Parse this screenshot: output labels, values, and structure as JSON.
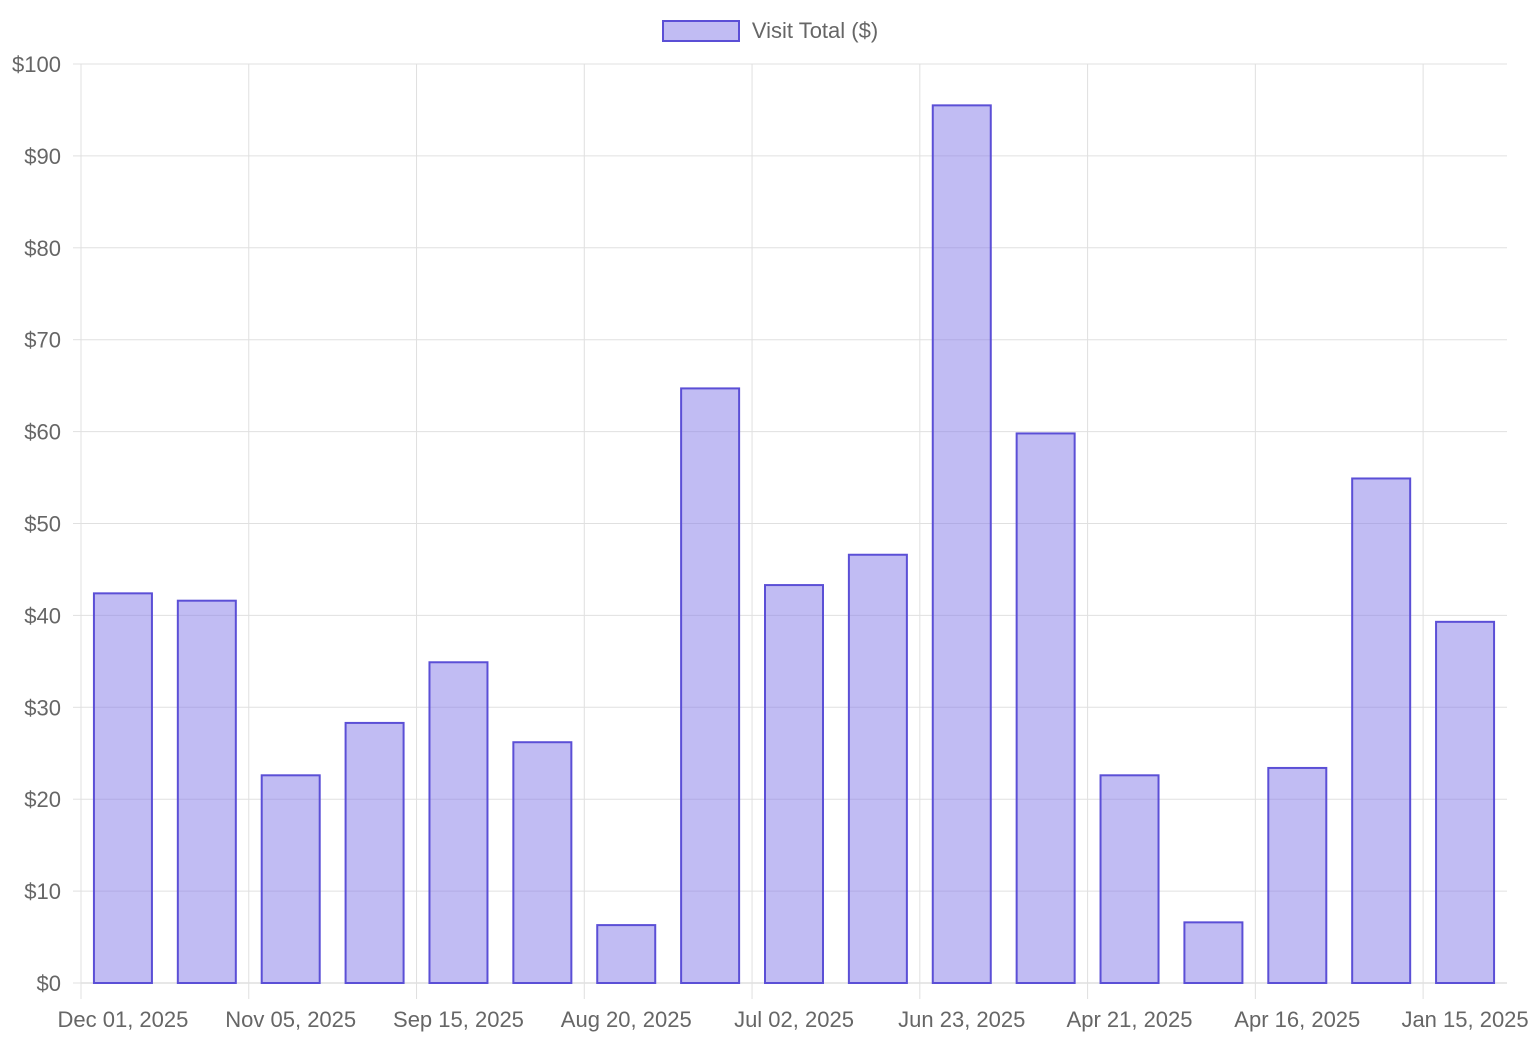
{
  "chart_data": {
    "type": "bar",
    "title": "",
    "xlabel": "",
    "ylabel": "",
    "ylim": [
      0,
      100
    ],
    "y_ticks": [
      "$0",
      "$10",
      "$20",
      "$30",
      "$40",
      "$50",
      "$60",
      "$70",
      "$80",
      "$90",
      "$100"
    ],
    "y_tick_values": [
      0,
      10,
      20,
      30,
      40,
      50,
      60,
      70,
      80,
      90,
      100
    ],
    "categories": [
      "Dec 01, 2025",
      "",
      "Nov 05, 2025",
      "",
      "Sep 15, 2025",
      "",
      "Aug 20, 2025",
      "",
      "Jul 02, 2025",
      "",
      "Jun 23, 2025",
      "",
      "Apr 21, 2025",
      "",
      "Apr 16, 2025",
      "",
      "Jan 15, 2025"
    ],
    "x_tick_labels": [
      "Dec 01, 2025",
      "Nov 05, 2025",
      "Sep 15, 2025",
      "Aug 20, 2025",
      "Jul 02, 2025",
      "Jun 23, 2025",
      "Apr 21, 2025",
      "Apr 16, 2025",
      "Jan 15, 2025"
    ],
    "series": [
      {
        "name": "Visit Total ($)",
        "values": [
          42.4,
          41.6,
          22.6,
          28.3,
          34.9,
          26.2,
          6.3,
          64.7,
          43.3,
          46.6,
          95.5,
          59.8,
          22.6,
          6.6,
          23.4,
          54.9,
          39.3
        ]
      }
    ],
    "grid": true,
    "legend_position": "top-center",
    "colors": {
      "bar_fill": "rgba(132, 121, 232, 0.5)",
      "bar_border": "#5b4fd6",
      "grid": "#e0e0e0",
      "text": "#666666"
    }
  }
}
